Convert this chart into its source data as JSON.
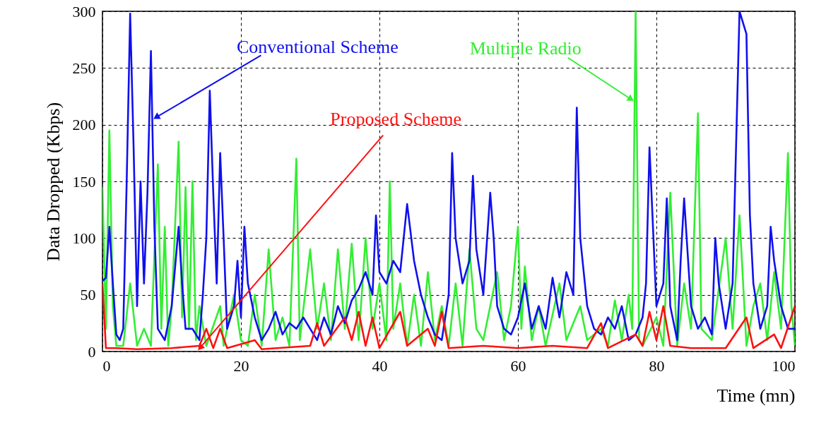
{
  "chart_data": {
    "type": "line",
    "xlabel": "Time (mn)",
    "ylabel": "Data Dropped (Kbps)",
    "xlim": [
      0,
      100
    ],
    "xticks": [
      0,
      20,
      40,
      60,
      80,
      100
    ],
    "ylim": [
      0,
      300
    ],
    "yticks": [
      0,
      50,
      100,
      150,
      200,
      250,
      300
    ],
    "grid": true,
    "annotations": [
      {
        "text": "Multiple Radio",
        "x": 76.2,
        "y": 223
      },
      {
        "text": "Conventional Scheme",
        "x": 7.9,
        "y": 207
      },
      {
        "text": "Proposed Scheme",
        "x": 14.2,
        "y": 4
      }
    ],
    "series": [
      {
        "color": "#33ee33",
        "x": [
          0,
          0.5,
          1,
          1.5,
          2,
          3,
          4,
          5,
          6,
          7,
          8,
          8.5,
          9,
          9.5,
          10,
          11,
          11.5,
          12,
          12.5,
          13,
          13.5,
          14,
          15,
          17,
          17.5,
          19,
          20,
          21,
          22,
          23,
          24,
          25,
          26,
          27,
          28,
          28.5,
          30,
          31,
          32,
          33,
          34,
          35,
          36,
          37,
          38,
          39,
          40,
          41,
          41.5,
          42,
          43,
          44,
          45,
          46,
          47,
          48,
          49,
          50,
          51,
          52,
          53,
          54,
          55,
          57,
          58,
          59,
          60,
          60.5,
          61,
          62,
          63,
          64,
          66,
          67,
          69,
          70,
          72,
          73,
          74,
          75,
          76,
          76.5,
          77,
          77.5,
          78,
          80,
          81,
          82,
          83,
          84,
          85,
          86,
          86.5,
          88,
          90,
          91,
          92,
          93,
          94,
          95,
          96,
          97,
          98,
          99,
          99.5,
          100
        ],
        "values": [
          145,
          20,
          195,
          40,
          5,
          5,
          60,
          5,
          20,
          5,
          165,
          20,
          110,
          5,
          40,
          185,
          30,
          145,
          20,
          150,
          10,
          40,
          5,
          40,
          5,
          50,
          10,
          5,
          50,
          5,
          90,
          10,
          30,
          5,
          170,
          10,
          90,
          20,
          60,
          10,
          90,
          20,
          95,
          10,
          100,
          20,
          60,
          10,
          150,
          20,
          60,
          5,
          50,
          5,
          70,
          10,
          40,
          5,
          60,
          5,
          90,
          20,
          10,
          70,
          10,
          40,
          110,
          20,
          75,
          10,
          40,
          5,
          60,
          10,
          40,
          10,
          20,
          5,
          45,
          10,
          50,
          20,
          300,
          10,
          5,
          30,
          5,
          140,
          5,
          60,
          20,
          210,
          20,
          10,
          100,
          20,
          120,
          5,
          40,
          60,
          10,
          70,
          20,
          175,
          40,
          5
        ]
      },
      {
        "color": "#1010ee",
        "x": [
          0,
          0.5,
          1,
          1.5,
          2,
          2.5,
          3,
          3.5,
          4,
          4.5,
          5,
          5.5,
          6,
          6.5,
          7,
          7.5,
          8,
          9,
          10,
          11,
          11.5,
          12,
          13,
          14,
          14.5,
          15,
          15.5,
          16,
          16.5,
          17,
          17.5,
          18,
          19,
          19.5,
          20,
          20.5,
          21,
          22,
          23,
          24,
          25,
          26,
          27,
          28,
          29,
          30,
          31,
          32,
          33,
          34,
          35,
          36,
          37,
          38,
          39,
          39.5,
          40,
          41,
          42,
          43,
          44,
          45,
          46,
          47,
          48,
          49,
          50,
          50.5,
          51,
          52,
          53,
          53.5,
          54,
          55,
          56,
          56.5,
          57,
          58,
          59,
          60,
          61,
          62,
          63,
          64,
          65,
          66,
          67,
          68,
          68.5,
          69,
          70,
          71,
          72,
          73,
          74,
          75,
          76,
          77,
          78,
          78.5,
          79,
          80,
          81,
          81.5,
          82,
          83,
          83.5,
          84,
          85,
          86,
          87,
          88,
          88.5,
          89,
          90,
          91,
          91.5,
          92,
          93,
          93.5,
          94,
          95,
          96,
          96.5,
          97,
          98,
          99,
          100
        ],
        "values": [
          62,
          65,
          110,
          60,
          15,
          10,
          20,
          150,
          298,
          180,
          40,
          150,
          60,
          140,
          265,
          110,
          20,
          10,
          40,
          110,
          60,
          20,
          20,
          10,
          50,
          100,
          230,
          140,
          60,
          175,
          100,
          20,
          40,
          80,
          30,
          110,
          60,
          30,
          10,
          20,
          35,
          15,
          25,
          20,
          30,
          20,
          10,
          30,
          15,
          40,
          25,
          45,
          55,
          70,
          50,
          120,
          70,
          60,
          80,
          70,
          130,
          80,
          50,
          30,
          15,
          10,
          50,
          175,
          100,
          60,
          80,
          155,
          90,
          50,
          140,
          100,
          40,
          20,
          15,
          30,
          60,
          20,
          40,
          20,
          65,
          30,
          70,
          50,
          215,
          100,
          40,
          20,
          15,
          30,
          20,
          40,
          10,
          15,
          30,
          60,
          180,
          40,
          60,
          135,
          40,
          10,
          80,
          135,
          40,
          20,
          30,
          15,
          100,
          60,
          20,
          60,
          180,
          300,
          280,
          120,
          60,
          20,
          40,
          110,
          80,
          40,
          20,
          20
        ]
      },
      {
        "color": "#ff1010",
        "x": [
          0,
          0.5,
          2,
          5,
          10,
          14,
          15,
          16,
          17,
          18,
          22,
          23,
          30,
          31,
          32,
          35,
          36,
          37,
          38,
          39,
          40,
          43,
          44,
          47,
          48,
          49,
          50,
          55,
          60,
          65,
          70,
          72,
          73,
          77,
          78,
          79,
          80,
          81,
          82,
          85,
          90,
          93,
          94,
          97,
          98,
          100
        ],
        "values": [
          60,
          3,
          3,
          2,
          3,
          5,
          20,
          3,
          20,
          3,
          10,
          2,
          5,
          25,
          5,
          30,
          10,
          35,
          5,
          30,
          3,
          35,
          5,
          20,
          5,
          35,
          3,
          5,
          3,
          5,
          3,
          25,
          3,
          15,
          5,
          35,
          10,
          40,
          5,
          3,
          3,
          30,
          3,
          15,
          3,
          40
        ]
      }
    ]
  }
}
